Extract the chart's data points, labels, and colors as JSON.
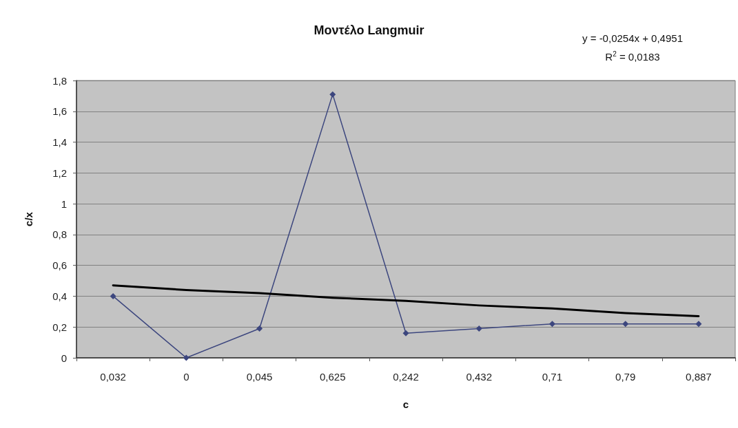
{
  "chart_data": {
    "type": "line",
    "title": "Μοντέλο Langmuir",
    "xlabel": "c",
    "ylabel": "c/x",
    "annotations": [
      "y = -0,0254x + 0,4951",
      "R$^{2}$ = 0,0183"
    ],
    "categories": [
      "0,032",
      "0",
      "0,045",
      "0,625",
      "0,242",
      "0,432",
      "0,71",
      "0,79",
      "0,887"
    ],
    "series": [
      {
        "color": "#3c467e",
        "values": [
          0.4,
          0,
          0.19,
          1.71,
          0.16,
          0.19,
          0.22,
          0.22,
          0.22
        ]
      },
      {
        "type": "line",
        "color": "#000000",
        "marker": "none",
        "values": [
          0.47,
          0.44,
          0.42,
          0.39,
          0.37,
          0.34,
          0.32,
          0.29,
          0.27
        ]
      }
    ],
    "ylim": [
      0,
      1.8
    ],
    "yticks": [
      0,
      {
        "value": 0.2,
        "label": "0,2"
      },
      {
        "value": 0.4,
        "label": "0,4"
      },
      {
        "value": 0.6,
        "label": "0,6"
      },
      {
        "value": 0.8,
        "label": "0,8"
      },
      1,
      {
        "value": 1.2,
        "label": "1,2"
      },
      {
        "value": 1.4,
        "label": "1,4"
      },
      {
        "value": 1.6,
        "label": "1,6"
      },
      {
        "value": 1.8,
        "label": "1,8"
      }
    ],
    "grid": "y",
    "marker": "diamond"
  }
}
